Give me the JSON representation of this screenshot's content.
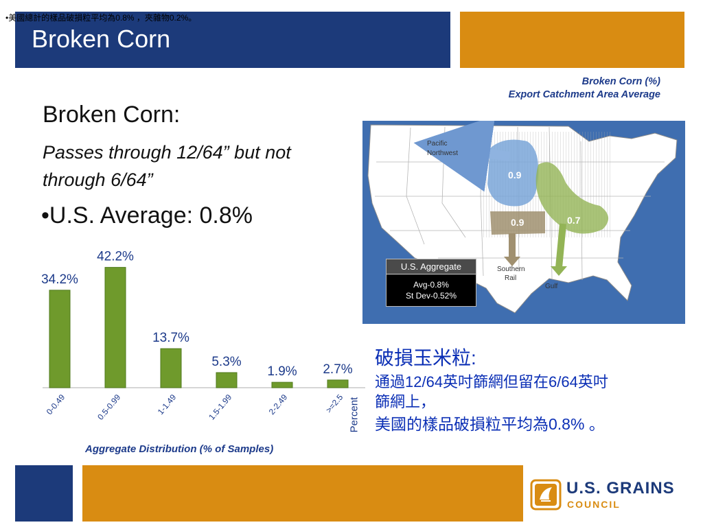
{
  "top_note": "•美國總計的樣品破損粒平均為0.8% ，夾雜物0.2%。",
  "slide_title": "Broken Corn",
  "map_caption": {
    "line1": "Broken Corn (%)",
    "line2": "Export Catchment Area Average"
  },
  "content": {
    "heading": "Broken Corn:",
    "definition": "Passes through 12/64” but not through 6/64”",
    "average": "•U.S. Average: 0.8%"
  },
  "chart_caption": "Aggregate Distribution (% of Samples)",
  "chart_data": {
    "type": "bar",
    "categories": [
      "0-0.49",
      "0.5-0.99",
      "1-1.49",
      "1.5-1.99",
      "2-2.49",
      ">=2.5"
    ],
    "values": [
      34.2,
      42.2,
      13.7,
      5.3,
      1.9,
      2.7
    ],
    "labels": [
      "34.2%",
      "42.2%",
      "13.7%",
      "5.3%",
      "1.9%",
      "2.7%"
    ],
    "ylabel": "Percent",
    "ylim": [
      0,
      45
    ],
    "bar_color": "#6f9a2c"
  },
  "map": {
    "region_labels": {
      "pnw": "Pacific Northwest",
      "southern_rail": "Southern Rail",
      "gulf": "Gulf"
    },
    "values": {
      "pnw": "0.9",
      "southern_rail": "0.9",
      "gulf": "0.7"
    },
    "aggregate": {
      "title": "U.S. Aggregate",
      "avg": "Avg-0.8%",
      "stdev": "St Dev-0.52%"
    }
  },
  "chinese": {
    "title": "破損玉米粒:",
    "line1": "通過12/64英吋篩網但留在6/64英吋",
    "line2": "篩網上，",
    "line3": "美國的樣品破損粒平均為0.8% 。"
  },
  "logo": {
    "name": "U.S. GRAINS",
    "sub": "COUNCIL"
  },
  "colors": {
    "navy": "#1c3a7a",
    "orange": "#d98c12",
    "chinese_text": "#0b2fb5"
  }
}
